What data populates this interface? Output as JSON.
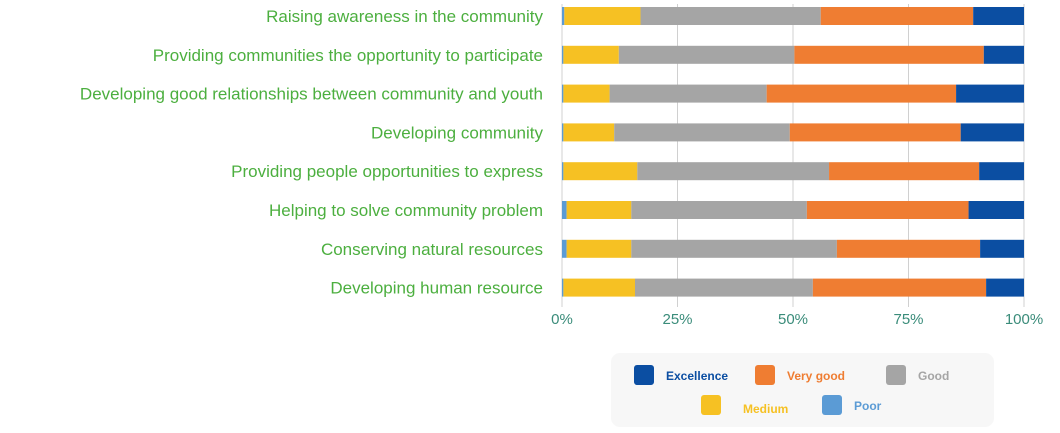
{
  "colors": {
    "Poor": "#5b9bd5",
    "Medium": "#f6c123",
    "Good": "#a5a5a5",
    "Very good": "#ef7d32",
    "Excellence": "#0b4ea2",
    "grid": "#d0d0d0",
    "legend_bg": "#f7f7f7"
  },
  "chart_data": {
    "type": "bar",
    "orientation": "horizontal",
    "stacked": "percent",
    "categories": [
      "Raising awareness in the community",
      "Providing communities the opportunity to participate",
      "Developing good relationships between community and youth",
      "Developing community",
      "Providing people opportunities to express",
      "Helping to solve community problem",
      "Conserving natural resources",
      "Developing human resource"
    ],
    "series": [
      {
        "name": "Poor",
        "values": [
          0.5,
          0.3,
          0.3,
          0.3,
          0.3,
          1.0,
          1.0,
          0.3
        ]
      },
      {
        "name": "Medium",
        "values": [
          16.5,
          12.0,
          10.0,
          11.0,
          16.0,
          14.0,
          14.0,
          15.5
        ]
      },
      {
        "name": "Good",
        "values": [
          39.0,
          38.0,
          34.0,
          38.0,
          41.5,
          38.0,
          44.5,
          38.5
        ]
      },
      {
        "name": "Very good",
        "values": [
          33.0,
          41.0,
          41.0,
          37.0,
          32.5,
          35.0,
          31.0,
          37.5
        ]
      },
      {
        "name": "Excellence",
        "values": [
          11.0,
          8.7,
          14.7,
          13.7,
          9.7,
          12.0,
          9.5,
          8.2
        ]
      }
    ],
    "x_ticks": [
      "0%",
      "25%",
      "50%",
      "75%",
      "100%"
    ],
    "xlim": [
      0,
      100
    ],
    "grid": true,
    "legend": {
      "position": "bottom-right",
      "rows": [
        [
          "Excellence",
          "Very good",
          "Good"
        ],
        [
          "Medium",
          "Poor"
        ]
      ]
    }
  }
}
